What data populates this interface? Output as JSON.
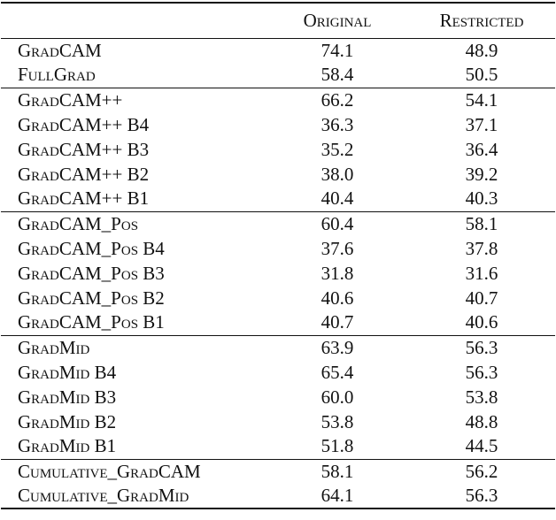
{
  "table": {
    "columns": [
      "Original",
      "Restricted"
    ],
    "groups": [
      [
        [
          "GradCAM",
          "74.1",
          "48.9"
        ],
        [
          "FullGrad",
          "58.4",
          "50.5"
        ]
      ],
      [
        [
          "GradCAM++",
          "66.2",
          "54.1"
        ],
        [
          "GradCAM++ B4",
          "36.3",
          "37.1"
        ],
        [
          "GradCAM++ B3",
          "35.2",
          "36.4"
        ],
        [
          "GradCAM++ B2",
          "38.0",
          "39.2"
        ],
        [
          "GradCAM++ B1",
          "40.4",
          "40.3"
        ]
      ],
      [
        [
          "GradCAM_Pos",
          "60.4",
          "58.1"
        ],
        [
          "GradCAM_Pos B4",
          "37.6",
          "37.8"
        ],
        [
          "GradCAM_Pos B3",
          "31.8",
          "31.6"
        ],
        [
          "GradCAM_Pos B2",
          "40.6",
          "40.7"
        ],
        [
          "GradCAM_Pos B1",
          "40.7",
          "40.6"
        ]
      ],
      [
        [
          "GradMid",
          "63.9",
          "56.3"
        ],
        [
          "GradMid B4",
          "65.4",
          "56.3"
        ],
        [
          "GradMid B3",
          "60.0",
          "53.8"
        ],
        [
          "GradMid B2",
          "53.8",
          "48.8"
        ],
        [
          "GradMid B1",
          "51.8",
          "44.5"
        ]
      ],
      [
        [
          "Cumulative_GradCAM",
          "58.1",
          "56.2"
        ],
        [
          "Cumulative_GradMid",
          "64.1",
          "56.3"
        ]
      ]
    ]
  }
}
